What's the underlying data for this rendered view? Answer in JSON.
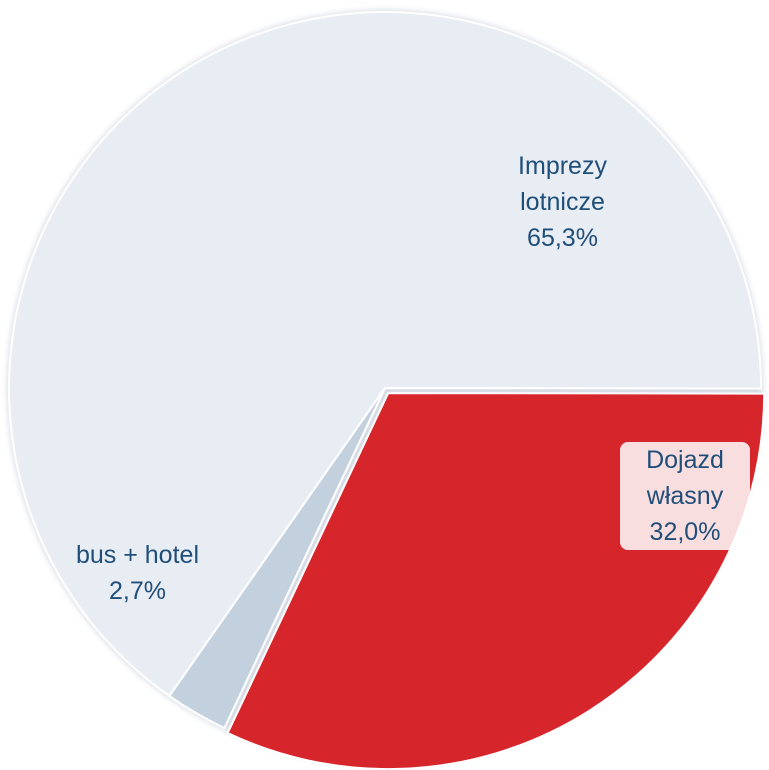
{
  "chart_data": {
    "type": "pie",
    "categories": [
      "Imprezy lotnicze",
      "Dojazd własny",
      "bus + hotel"
    ],
    "values": [
      65.3,
      32.0,
      2.7
    ],
    "value_labels": [
      "65,3%",
      "32,0%",
      "2,7%"
    ],
    "colors": [
      "#e8ecf3",
      "#d7262b",
      "#c3d1df"
    ]
  }
}
